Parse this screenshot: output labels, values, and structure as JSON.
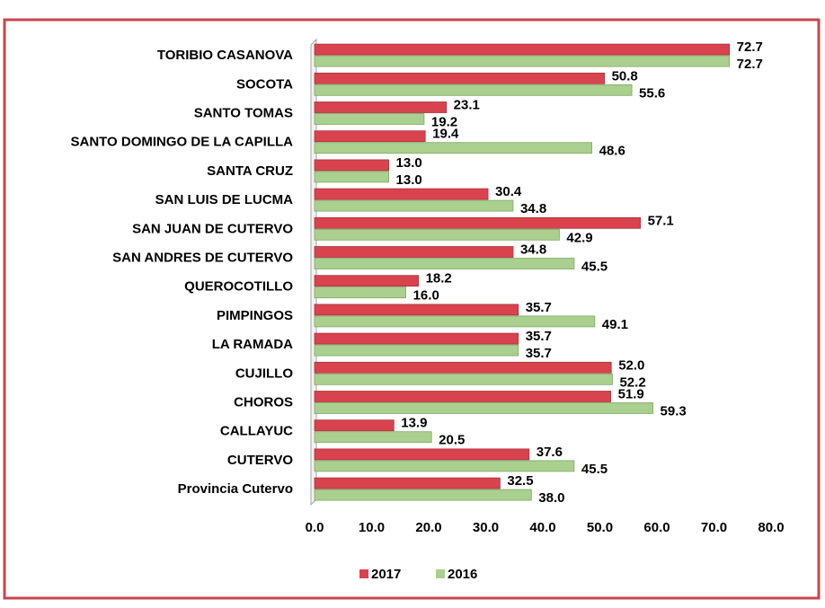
{
  "chart_data": {
    "type": "bar",
    "orientation": "horizontal",
    "categories": [
      "TORIBIO CASANOVA",
      "SOCOTA",
      "SANTO TOMAS",
      "SANTO DOMINGO DE LA CAPILLA",
      "SANTA CRUZ",
      "SAN LUIS DE LUCMA",
      "SAN JUAN DE CUTERVO",
      "SAN ANDRES DE CUTERVO",
      "QUEROCOTILLO",
      "PIMPINGOS",
      "LA RAMADA",
      "CUJILLO",
      "CHOROS",
      "CALLAYUC",
      "CUTERVO",
      "Provincia Cutervo"
    ],
    "series": [
      {
        "name": "2017",
        "color": "#d9434e",
        "values": [
          72.7,
          50.8,
          23.1,
          19.4,
          13.0,
          30.4,
          57.1,
          34.8,
          18.2,
          35.7,
          35.7,
          52.0,
          51.9,
          13.9,
          37.6,
          32.5
        ],
        "value_labels": [
          "72.7",
          "50.8",
          "23.1",
          "19.4",
          "13.0",
          "30.4",
          "57.1",
          "34.8",
          "18.2",
          "35.7",
          "35.7",
          "52.0",
          "51.9",
          "13.9",
          "37.6",
          "32.5"
        ]
      },
      {
        "name": "2016",
        "color": "#a9d08e",
        "values": [
          72.7,
          55.6,
          19.2,
          48.6,
          13.0,
          34.8,
          42.9,
          45.5,
          16.0,
          49.1,
          35.7,
          52.2,
          59.3,
          20.5,
          45.5,
          38.0
        ],
        "value_labels": [
          "72.7",
          "55.6",
          "19.2",
          "48.6",
          "13.0",
          "34.8",
          "42.9",
          "45.5",
          "16.0",
          "49.1",
          "35.7",
          "52.2",
          "59.3",
          "20.5",
          "45.5",
          "38.0"
        ]
      }
    ],
    "xlim": [
      0,
      80
    ],
    "xticks": [
      {
        "value": 0,
        "label": "0.0"
      },
      {
        "value": 10,
        "label": "10.0"
      },
      {
        "value": 20,
        "label": "20.0"
      },
      {
        "value": 30,
        "label": "30.0"
      },
      {
        "value": 40,
        "label": "40.0"
      },
      {
        "value": 50,
        "label": "50.0"
      },
      {
        "value": 60,
        "label": "60.0"
      },
      {
        "value": 70,
        "label": "70.0"
      },
      {
        "value": 80,
        "label": "80.0"
      }
    ],
    "legend": "bottom"
  }
}
